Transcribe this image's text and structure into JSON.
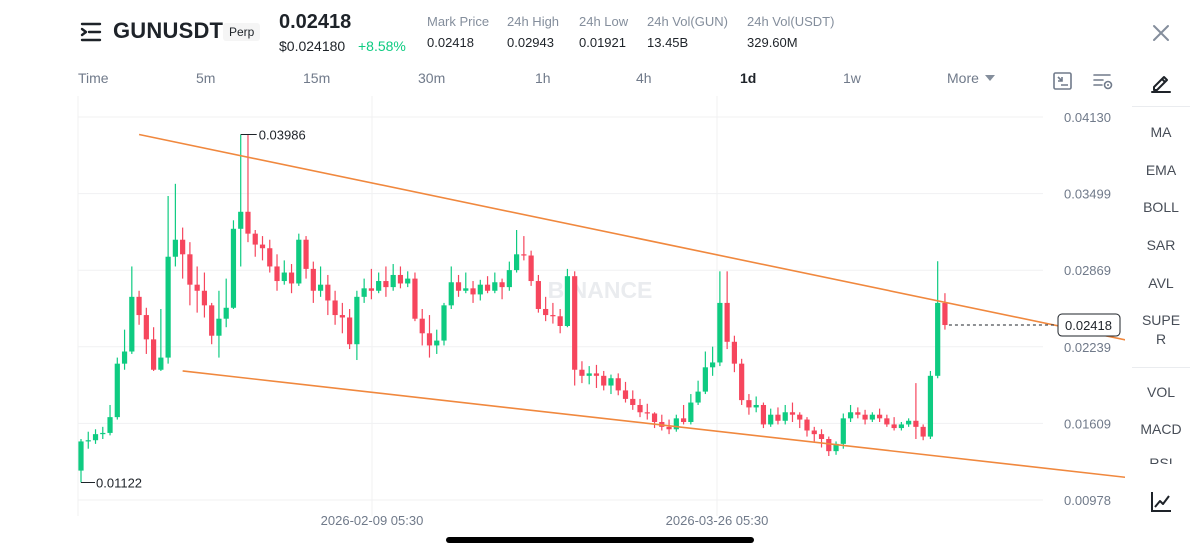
{
  "header": {
    "symbol": "GUNUSDT",
    "badge": "Perp",
    "last_price": "0.02418",
    "usd_price": "$0.024180",
    "change": "+8.58%",
    "stats": [
      {
        "label": "Mark Price",
        "value": "0.02418"
      },
      {
        "label": "24h High",
        "value": "0.02943"
      },
      {
        "label": "24h Low",
        "value": "0.01921"
      },
      {
        "label": "24h Vol(GUN)",
        "value": "13.45B"
      },
      {
        "label": "24h Vol(USDT)",
        "value": "329.60M"
      }
    ]
  },
  "timeframes": [
    {
      "label": "Time",
      "active": false
    },
    {
      "label": "5m",
      "active": false
    },
    {
      "label": "15m",
      "active": false
    },
    {
      "label": "30m",
      "active": false
    },
    {
      "label": "1h",
      "active": false
    },
    {
      "label": "4h",
      "active": false
    },
    {
      "label": "1d",
      "active": true
    },
    {
      "label": "1w",
      "active": false
    },
    {
      "label": "More",
      "active": false
    }
  ],
  "indicators": [
    "MA",
    "EMA",
    "BOLL",
    "SAR",
    "AVL",
    "SUPE",
    "R",
    "VOL",
    "MACD",
    "RSI"
  ],
  "colors": {
    "up": "#0ecb81",
    "down": "#f6465d",
    "trendline": "#f0883e",
    "grid": "#f0f1f2",
    "axis_text": "#707a8a"
  },
  "watermark": "BINANCE",
  "chart_data": {
    "type": "candlestick",
    "interval": "1d",
    "y_ticks": [
      0.0413,
      0.03499,
      0.02869,
      0.02239,
      0.01609,
      0.00978
    ],
    "y_tick_labels": [
      "0.04130",
      "0.03499",
      "0.02869",
      "0.02239",
      "0.01609",
      "0.00978"
    ],
    "x_tick_labels": [
      "2026-02-09 05:30",
      "2026-03-26 05:30"
    ],
    "ylim": [
      0.00878,
      0.0424
    ],
    "current_price": 0.02418,
    "current_price_label": "0.02418",
    "high_marker": {
      "value": 0.03986,
      "label": "0.03986"
    },
    "low_marker": {
      "value": 0.01122,
      "label": "0.01122"
    },
    "trendlines": [
      {
        "name": "upper",
        "from": [
          8,
          0.03986
        ],
        "to": [
          147,
          0.0225
        ]
      },
      {
        "name": "lower",
        "from": [
          14,
          0.0204
        ],
        "to": [
          147,
          0.0114
        ]
      }
    ],
    "candles": [
      [
        0.0122,
        0.0146,
        0.0148,
        0.01122
      ],
      [
        0.0146,
        0.0147,
        0.0154,
        0.014
      ],
      [
        0.0147,
        0.0152,
        0.0156,
        0.0144
      ],
      [
        0.0152,
        0.0153,
        0.0158,
        0.0148
      ],
      [
        0.0153,
        0.0166,
        0.0176,
        0.0151
      ],
      [
        0.0166,
        0.021,
        0.0215,
        0.0164
      ],
      [
        0.021,
        0.022,
        0.0238,
        0.0205
      ],
      [
        0.022,
        0.0265,
        0.029,
        0.0218
      ],
      [
        0.0265,
        0.025,
        0.027,
        0.0242
      ],
      [
        0.025,
        0.023,
        0.0256,
        0.0218
      ],
      [
        0.023,
        0.0205,
        0.024,
        0.0204
      ],
      [
        0.0205,
        0.0215,
        0.0255,
        0.0204
      ],
      [
        0.0215,
        0.0298,
        0.0348,
        0.021
      ],
      [
        0.0298,
        0.0312,
        0.0358,
        0.029
      ],
      [
        0.0312,
        0.03,
        0.0322,
        0.028
      ],
      [
        0.03,
        0.0275,
        0.031,
        0.0258
      ],
      [
        0.0275,
        0.027,
        0.029,
        0.0252
      ],
      [
        0.027,
        0.0258,
        0.0285,
        0.0248
      ],
      [
        0.0258,
        0.0233,
        0.026,
        0.0226
      ],
      [
        0.0233,
        0.0247,
        0.027,
        0.0215
      ],
      [
        0.0247,
        0.0256,
        0.028,
        0.024
      ],
      [
        0.0256,
        0.0321,
        0.0328,
        0.0255
      ],
      [
        0.0321,
        0.0335,
        0.03986,
        0.029
      ],
      [
        0.0335,
        0.0317,
        0.03986,
        0.031
      ],
      [
        0.0317,
        0.0308,
        0.032,
        0.0298
      ],
      [
        0.0308,
        0.0305,
        0.0315,
        0.0295
      ],
      [
        0.0305,
        0.029,
        0.0312,
        0.0285
      ],
      [
        0.029,
        0.0278,
        0.03,
        0.027
      ],
      [
        0.0278,
        0.0285,
        0.0295,
        0.0275
      ],
      [
        0.0285,
        0.0276,
        0.0292,
        0.0268
      ],
      [
        0.0276,
        0.0312,
        0.0317,
        0.0274
      ],
      [
        0.0312,
        0.0288,
        0.0315,
        0.028
      ],
      [
        0.0288,
        0.027,
        0.0294,
        0.026
      ],
      [
        0.027,
        0.0275,
        0.029,
        0.0265
      ],
      [
        0.0275,
        0.0262,
        0.0283,
        0.025
      ],
      [
        0.0262,
        0.025,
        0.027,
        0.0242
      ],
      [
        0.025,
        0.0248,
        0.026,
        0.0235
      ],
      [
        0.0248,
        0.0226,
        0.0255,
        0.0222
      ],
      [
        0.0226,
        0.0265,
        0.027,
        0.0213
      ],
      [
        0.0265,
        0.0272,
        0.028,
        0.026
      ],
      [
        0.0272,
        0.027,
        0.0288,
        0.0263
      ],
      [
        0.027,
        0.0278,
        0.0285,
        0.0268
      ],
      [
        0.0278,
        0.0273,
        0.029,
        0.0265
      ],
      [
        0.0273,
        0.0283,
        0.0292,
        0.027
      ],
      [
        0.0283,
        0.0276,
        0.029,
        0.0272
      ],
      [
        0.0276,
        0.028,
        0.0286,
        0.0273
      ],
      [
        0.028,
        0.0247,
        0.0285,
        0.0245
      ],
      [
        0.0247,
        0.0235,
        0.0255,
        0.0225
      ],
      [
        0.0235,
        0.0225,
        0.025,
        0.0215
      ],
      [
        0.0225,
        0.0229,
        0.0238,
        0.0218
      ],
      [
        0.0229,
        0.0258,
        0.026,
        0.0225
      ],
      [
        0.0258,
        0.0277,
        0.029,
        0.0255
      ],
      [
        0.0277,
        0.027,
        0.0283,
        0.0265
      ],
      [
        0.027,
        0.0272,
        0.0285,
        0.0268
      ],
      [
        0.0272,
        0.0267,
        0.0278,
        0.026
      ],
      [
        0.0267,
        0.0275,
        0.0279,
        0.0262
      ],
      [
        0.0275,
        0.027,
        0.0282,
        0.0268
      ],
      [
        0.027,
        0.0277,
        0.0285,
        0.0268
      ],
      [
        0.0277,
        0.0273,
        0.028,
        0.0263
      ],
      [
        0.0273,
        0.0287,
        0.0294,
        0.027
      ],
      [
        0.0287,
        0.03,
        0.032,
        0.0285
      ],
      [
        0.03,
        0.0299,
        0.0315,
        0.0295
      ],
      [
        0.0299,
        0.0278,
        0.0303,
        0.0274
      ],
      [
        0.0278,
        0.0255,
        0.0283,
        0.0252
      ],
      [
        0.0255,
        0.025,
        0.0265,
        0.0245
      ],
      [
        0.025,
        0.0249,
        0.026,
        0.0243
      ],
      [
        0.0249,
        0.0241,
        0.0255,
        0.0235
      ],
      [
        0.0241,
        0.0282,
        0.0288,
        0.024
      ],
      [
        0.0282,
        0.0205,
        0.0286,
        0.0192
      ],
      [
        0.0205,
        0.02,
        0.0212,
        0.0194
      ],
      [
        0.02,
        0.0202,
        0.0208,
        0.0193
      ],
      [
        0.0202,
        0.02,
        0.0209,
        0.019
      ],
      [
        0.02,
        0.0192,
        0.0204,
        0.0188
      ],
      [
        0.0192,
        0.0198,
        0.0201,
        0.0185
      ],
      [
        0.0198,
        0.0188,
        0.0202,
        0.0184
      ],
      [
        0.0188,
        0.0181,
        0.0195,
        0.0178
      ],
      [
        0.0181,
        0.0176,
        0.0188,
        0.0172
      ],
      [
        0.0176,
        0.017,
        0.0181,
        0.0166
      ],
      [
        0.017,
        0.0169,
        0.0177,
        0.0164
      ],
      [
        0.0169,
        0.0162,
        0.017,
        0.0157
      ],
      [
        0.0162,
        0.0158,
        0.0168,
        0.0155
      ],
      [
        0.0158,
        0.0156,
        0.0164,
        0.0152
      ],
      [
        0.0156,
        0.0165,
        0.0168,
        0.0154
      ],
      [
        0.0165,
        0.0162,
        0.0176,
        0.016
      ],
      [
        0.0162,
        0.0178,
        0.0185,
        0.016
      ],
      [
        0.0178,
        0.0187,
        0.0196,
        0.0176
      ],
      [
        0.0187,
        0.0207,
        0.022,
        0.0185
      ],
      [
        0.0207,
        0.0211,
        0.0224,
        0.02
      ],
      [
        0.0211,
        0.026,
        0.0286,
        0.0208
      ],
      [
        0.026,
        0.0228,
        0.0286,
        0.0222
      ],
      [
        0.0228,
        0.021,
        0.0233,
        0.0203
      ],
      [
        0.021,
        0.018,
        0.0214,
        0.0176
      ],
      [
        0.018,
        0.0174,
        0.0185,
        0.0168
      ],
      [
        0.0174,
        0.0176,
        0.0183,
        0.017
      ],
      [
        0.0176,
        0.016,
        0.0178,
        0.0157
      ],
      [
        0.016,
        0.0168,
        0.0173,
        0.0158
      ],
      [
        0.0168,
        0.0163,
        0.0174,
        0.016
      ],
      [
        0.0163,
        0.017,
        0.0176,
        0.016
      ],
      [
        0.017,
        0.0168,
        0.0178,
        0.0162
      ],
      [
        0.0168,
        0.0164,
        0.017,
        0.0157
      ],
      [
        0.0164,
        0.0155,
        0.0166,
        0.015
      ],
      [
        0.0155,
        0.0152,
        0.0158,
        0.0146
      ],
      [
        0.0152,
        0.0148,
        0.0156,
        0.0141
      ],
      [
        0.0148,
        0.0138,
        0.015,
        0.0134
      ],
      [
        0.0138,
        0.0144,
        0.0146,
        0.0135
      ],
      [
        0.0144,
        0.0165,
        0.0169,
        0.014
      ],
      [
        0.0165,
        0.017,
        0.0176,
        0.0162
      ],
      [
        0.017,
        0.0168,
        0.0174,
        0.0165
      ],
      [
        0.0168,
        0.0164,
        0.0172,
        0.016
      ],
      [
        0.0164,
        0.0168,
        0.017,
        0.0162
      ],
      [
        0.0168,
        0.0165,
        0.0173,
        0.0162
      ],
      [
        0.0165,
        0.016,
        0.0168,
        0.0158
      ],
      [
        0.016,
        0.0157,
        0.0166,
        0.0155
      ],
      [
        0.0157,
        0.016,
        0.0162,
        0.0155
      ],
      [
        0.016,
        0.0163,
        0.0165,
        0.0158
      ],
      [
        0.0163,
        0.0158,
        0.0194,
        0.0148
      ],
      [
        0.0158,
        0.015,
        0.016,
        0.0147
      ],
      [
        0.015,
        0.02,
        0.0204,
        0.0148
      ],
      [
        0.02,
        0.026,
        0.02943,
        0.0198
      ],
      [
        0.026,
        0.02418,
        0.0268,
        0.0238
      ]
    ]
  }
}
